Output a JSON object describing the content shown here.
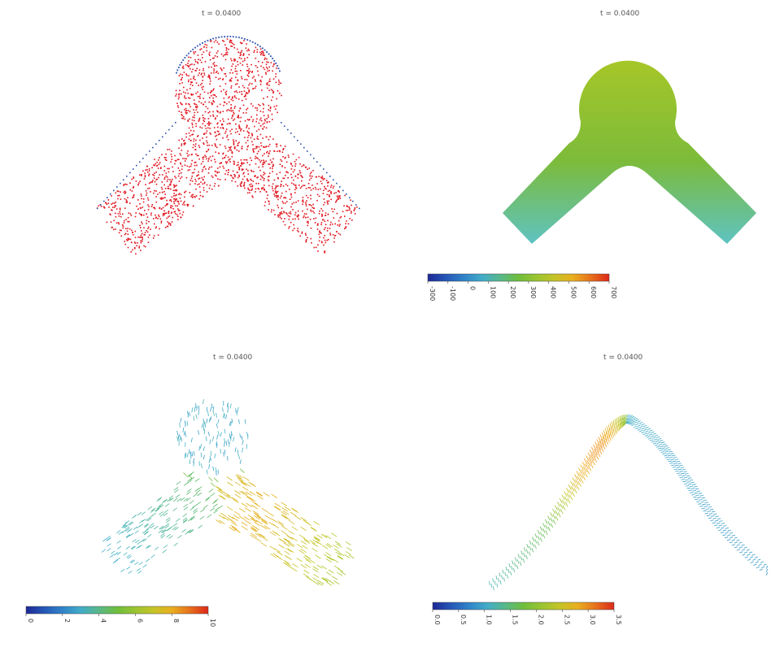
{
  "panels": [
    {
      "title": "t = 0.0400"
    },
    {
      "title": "t = 0.0400"
    },
    {
      "title": "t = 0.0400"
    },
    {
      "title": "t = 0.0400"
    }
  ],
  "chart_data": [
    {
      "type": "scatter",
      "title": "t = 0.0400",
      "description": "",
      "series": [
        {
          "color": "#e0141e",
          "values": []
        },
        {
          "color": "#2a4fb0",
          "values": []
        }
      ]
    },
    {
      "type": "heatmap",
      "title": "t = 0.0400",
      "colorbar": {
        "range": [
          -300,
          700
        ],
        "ticks": [
          "-300",
          "-100",
          "0",
          "100",
          "200",
          "300",
          "400",
          "500",
          "600",
          "700"
        ]
      }
    },
    {
      "type": "vector",
      "title": "t = 0.0400",
      "colorbar": {
        "range": [
          0,
          10
        ],
        "ticks": [
          "0",
          "2",
          "4",
          "6",
          "8",
          "10"
        ]
      }
    },
    {
      "type": "vector",
      "title": "t = 0.0400",
      "colorbar": {
        "range": [
          0,
          3.5
        ],
        "ticks": [
          "0.0",
          "0.5",
          "1.0",
          "1.5",
          "2.0",
          "2.5",
          "3.0",
          "3.5"
        ]
      }
    }
  ],
  "colors": {
    "particles": "#e0141e",
    "boundary": "#2a4fb0",
    "background": "#ffffff"
  }
}
